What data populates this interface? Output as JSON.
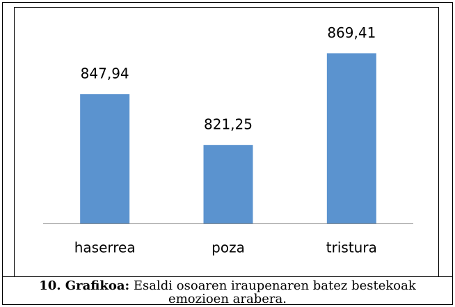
{
  "chart_data": {
    "type": "bar",
    "categories": [
      "haserrea",
      "poza",
      "tristura"
    ],
    "values": [
      847.94,
      821.25,
      869.41
    ],
    "value_labels": [
      "847,94",
      "821,25",
      "869,41"
    ],
    "color": "#5b93cf",
    "ylim": [
      780,
      880
    ]
  },
  "caption": {
    "label": "10. Grafikoa:",
    "lines": [
      "Esaldi osoaren iraupenaren batez bestekoak",
      "emozioen arabera."
    ]
  }
}
